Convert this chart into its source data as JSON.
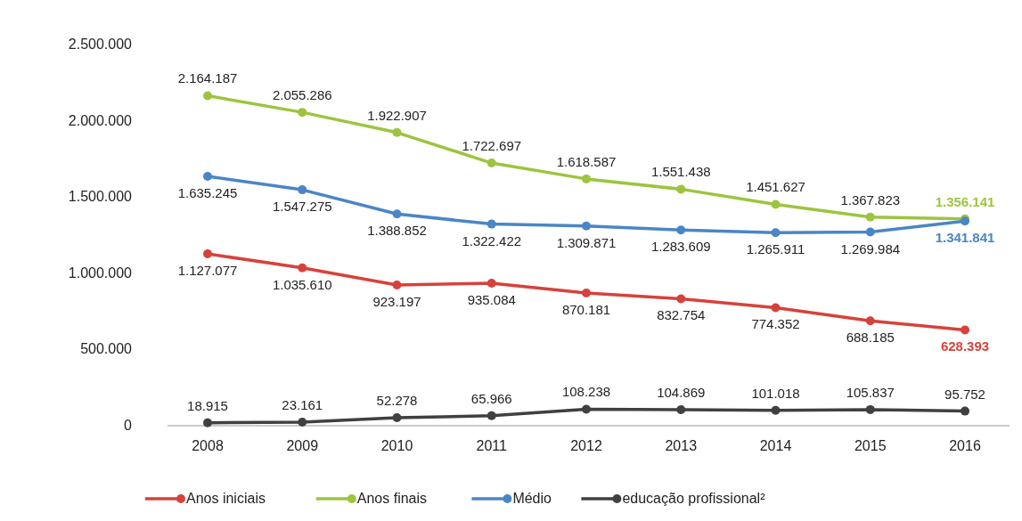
{
  "chart_data": {
    "type": "line",
    "categories": [
      "2008",
      "2009",
      "2010",
      "2011",
      "2012",
      "2013",
      "2014",
      "2015",
      "2016"
    ],
    "ylim": [
      0,
      2500000
    ],
    "yticks": [
      0,
      {
        "value": 500000,
        "label": "500.000"
      },
      {
        "value": 1000000,
        "label": "1.000.000"
      },
      {
        "value": 1500000,
        "label": "1.500.000"
      },
      {
        "value": 2000000,
        "label": "2.000.000"
      },
      {
        "value": 2500000,
        "label": "2.500.000"
      }
    ],
    "marker": "circle",
    "legend": "bottom",
    "series": [
      {
        "name": "Anos iniciais",
        "color": "#d6423b",
        "values": [
          1127077,
          1035610,
          923197,
          935084,
          870181,
          832754,
          774352,
          688185,
          628393
        ],
        "value_labels": [
          "1.127.077",
          "1.035.610",
          "923.197",
          "935.084",
          "870.181",
          "832.754",
          "774.352",
          "688.185",
          "628.393"
        ]
      },
      {
        "name": "Anos finais",
        "color": "#9dc43f",
        "values": [
          2164187,
          2055286,
          1922907,
          1722697,
          1618587,
          1551438,
          1451627,
          1367823,
          1356141
        ],
        "value_labels": [
          "2.164.187",
          "2.055.286",
          "1.922.907",
          "1.722.697",
          "1.618.587",
          "1.551.438",
          "1.451.627",
          "1.367.823",
          "1.356.141"
        ]
      },
      {
        "name": "Médio",
        "color": "#4a86c6",
        "values": [
          1635245,
          1547275,
          1388852,
          1322422,
          1309871,
          1283609,
          1265911,
          1269984,
          1341841
        ],
        "value_labels": [
          "1.635.245",
          "1.547.275",
          "1.388.852",
          "1.322.422",
          "1.309.871",
          "1.283.609",
          "1.265.911",
          "1.269.984",
          "1.341.841"
        ]
      },
      {
        "name": "educação profissional²",
        "color": "#404040",
        "values": [
          18915,
          23161,
          52278,
          65966,
          108238,
          104869,
          101018,
          105837,
          95752
        ],
        "value_labels": [
          "18.915",
          "23.161",
          "52.278",
          "65.966",
          "108.238",
          "104.869",
          "101.018",
          "105.837",
          "95.752"
        ]
      }
    ]
  }
}
